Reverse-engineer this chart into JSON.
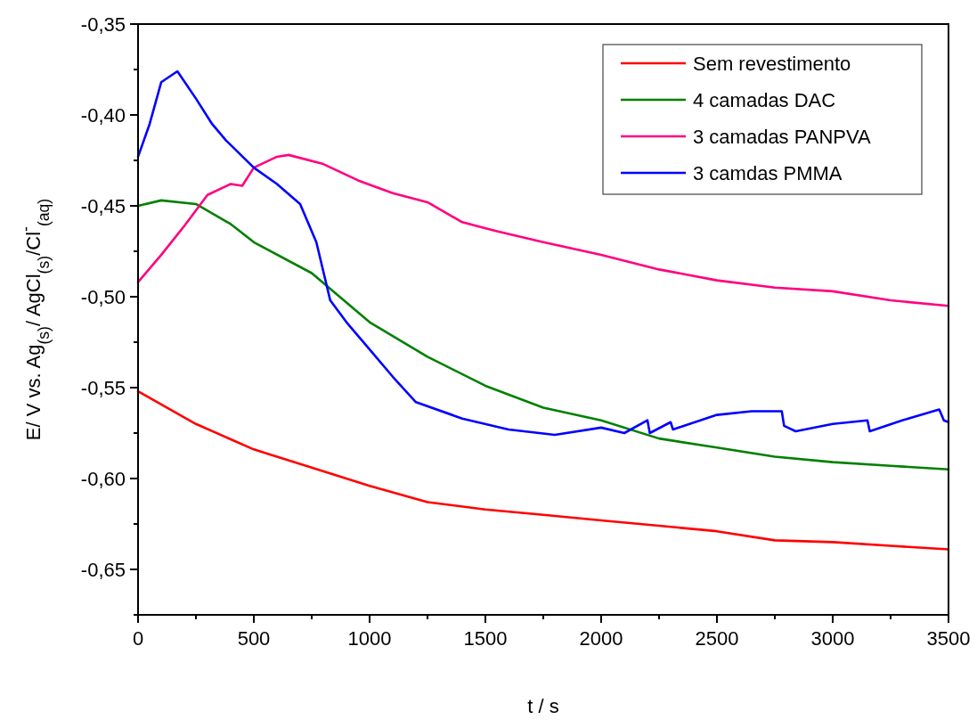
{
  "chart_data": {
    "type": "line",
    "xlabel": "t / s",
    "ylabel": "E/ V vs. Ag$_{(s)}$/ AgCl$_{(s)}$/Cl$^{-}$$_{(aq)}$",
    "xlim": [
      0,
      3500
    ],
    "ylim": [
      -0.675,
      -0.35
    ],
    "xticks": [
      0,
      {
        "value": 250,
        "label": null
      },
      500,
      {
        "value": 750,
        "label": null
      },
      1000,
      {
        "value": 1250,
        "label": null
      },
      1500,
      {
        "value": 1750,
        "label": null
      },
      2000,
      {
        "value": 2250,
        "label": null
      },
      2500,
      {
        "value": 2750,
        "label": null
      },
      3000,
      {
        "value": 3250,
        "label": null
      },
      3500
    ],
    "yticks": [
      {
        "value": -0.675,
        "label": null
      },
      {
        "value": -0.65,
        "label": "-0,65"
      },
      {
        "value": -0.625,
        "label": null
      },
      {
        "value": -0.6,
        "label": "-0,60"
      },
      {
        "value": -0.575,
        "label": null
      },
      {
        "value": -0.55,
        "label": "-0,55"
      },
      {
        "value": -0.525,
        "label": null
      },
      {
        "value": -0.5,
        "label": "-0,50"
      },
      {
        "value": -0.475,
        "label": null
      },
      {
        "value": -0.45,
        "label": "-0,45"
      },
      {
        "value": -0.425,
        "label": null
      },
      {
        "value": -0.4,
        "label": "-0,40"
      },
      {
        "value": -0.375,
        "label": null
      },
      {
        "value": -0.35,
        "label": "-0,35"
      }
    ],
    "grid": false,
    "legend": "top right",
    "line_style": "solid",
    "marker": "none",
    "series": [
      {
        "name": "Sem revestimento",
        "color": "#ff0000",
        "x": [
          0,
          250,
          500,
          750,
          1000,
          1250,
          1500,
          1750,
          2000,
          2250,
          2500,
          2750,
          3000,
          3250,
          3500
        ],
        "values": [
          -0.552,
          -0.57,
          -0.584,
          -0.594,
          -0.604,
          -0.613,
          -0.617,
          -0.62,
          -0.623,
          -0.626,
          -0.629,
          -0.634,
          -0.635,
          -0.637,
          -0.639
        ]
      },
      {
        "name": "4 camadas DAC",
        "color": "#008000",
        "x": [
          0,
          100,
          250,
          400,
          500,
          750,
          1000,
          1250,
          1500,
          1750,
          2000,
          2250,
          2500,
          2750,
          3000,
          3250,
          3500
        ],
        "values": [
          -0.45,
          -0.447,
          -0.449,
          -0.46,
          -0.47,
          -0.487,
          -0.514,
          -0.533,
          -0.549,
          -0.561,
          -0.568,
          -0.578,
          -0.583,
          -0.588,
          -0.591,
          -0.593,
          -0.595
        ]
      },
      {
        "name": "3 camadas PANPVA",
        "color": "#ff0080",
        "x": [
          0,
          100,
          200,
          300,
          400,
          450,
          500,
          600,
          650,
          800,
          950,
          1100,
          1250,
          1400,
          1550,
          1750,
          2000,
          2250,
          2500,
          2750,
          3000,
          3250,
          3500
        ],
        "values": [
          -0.492,
          -0.477,
          -0.461,
          -0.444,
          -0.438,
          -0.439,
          -0.429,
          -0.423,
          -0.422,
          -0.427,
          -0.436,
          -0.443,
          -0.448,
          -0.459,
          -0.464,
          -0.47,
          -0.477,
          -0.485,
          -0.491,
          -0.495,
          -0.497,
          -0.502,
          -0.505
        ]
      },
      {
        "name": "3 camdas PMMA",
        "color": "#0000ff",
        "x": [
          0,
          50,
          100,
          170,
          250,
          320,
          380,
          500,
          600,
          700,
          770,
          830,
          900,
          1000,
          1100,
          1200,
          1400,
          1600,
          1800,
          2000,
          2100,
          2200,
          2210,
          2300,
          2310,
          2500,
          2650,
          2780,
          2790,
          2840,
          3000,
          3150,
          3160,
          3300,
          3460,
          3480,
          3500
        ],
        "values": [
          -0.423,
          -0.405,
          -0.382,
          -0.376,
          -0.391,
          -0.405,
          -0.414,
          -0.429,
          -0.438,
          -0.449,
          -0.47,
          -0.502,
          -0.514,
          -0.529,
          -0.544,
          -0.558,
          -0.567,
          -0.573,
          -0.576,
          -0.572,
          -0.575,
          -0.568,
          -0.575,
          -0.569,
          -0.573,
          -0.565,
          -0.563,
          -0.563,
          -0.571,
          -0.574,
          -0.57,
          -0.568,
          -0.574,
          -0.568,
          -0.562,
          -0.568,
          -0.569
        ]
      }
    ]
  }
}
